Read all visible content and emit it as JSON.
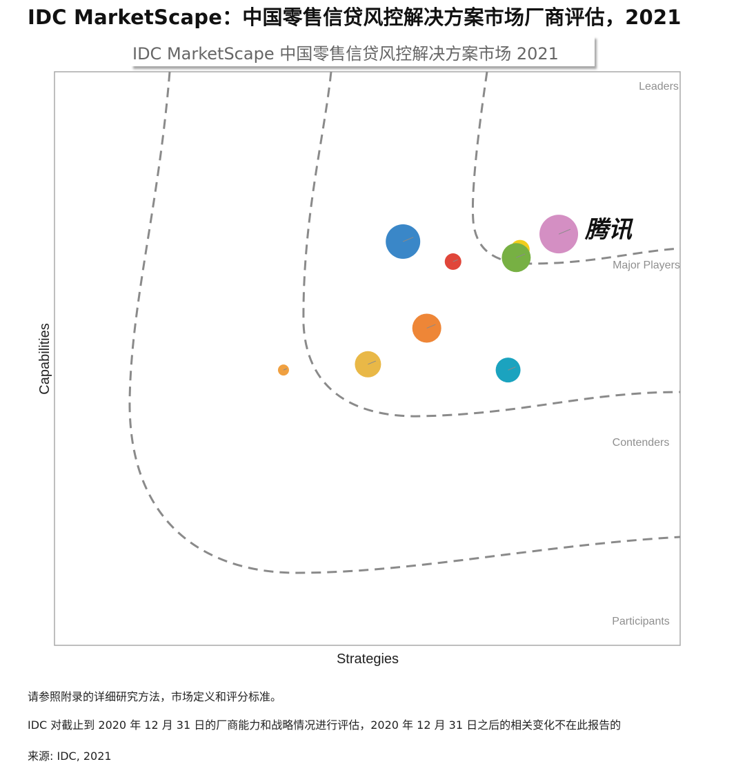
{
  "header": {
    "title": "IDC MarketScape：中国零售信贷风控解决方案市场厂商评估，2021",
    "subtitle": "IDC MarketScape 中国零售信贷风控解决方案市场 2021"
  },
  "chart_data": {
    "type": "scatter",
    "title": "IDC MarketScape 中国零售信贷风控解决方案市场 2021",
    "xlabel": "Strategies",
    "ylabel": "Capabilities",
    "xlim": [
      0,
      100
    ],
    "ylim": [
      0,
      100
    ],
    "grid": false,
    "legend": "none",
    "zones": [
      {
        "label": "Leaders"
      },
      {
        "label": "Major Players"
      },
      {
        "label": "Contenders"
      },
      {
        "label": "Participants"
      }
    ],
    "highlight_label": "腾讯",
    "points": [
      {
        "x": 80.6,
        "y": 71.7,
        "size": 28,
        "color": "#d48fc3",
        "label": "腾讯"
      },
      {
        "x": 74.4,
        "y": 69.0,
        "size": 14,
        "color": "#f2cd1c",
        "label": ""
      },
      {
        "x": 73.8,
        "y": 67.6,
        "size": 21,
        "color": "#77b043",
        "label": ""
      },
      {
        "x": 55.7,
        "y": 70.4,
        "size": 25,
        "color": "#3a87c8",
        "label": ""
      },
      {
        "x": 63.7,
        "y": 66.9,
        "size": 12,
        "color": "#e0463a",
        "label": ""
      },
      {
        "x": 59.5,
        "y": 55.3,
        "size": 21,
        "color": "#ee8637",
        "label": ""
      },
      {
        "x": 50.1,
        "y": 49.0,
        "size": 19,
        "color": "#e9b847",
        "label": ""
      },
      {
        "x": 72.5,
        "y": 48.0,
        "size": 18,
        "color": "#1ba3bf",
        "label": ""
      },
      {
        "x": 36.6,
        "y": 48.0,
        "size": 8,
        "color": "#f0a040",
        "label": ""
      }
    ]
  },
  "notes": {
    "line1": "请参照附录的详细研究方法，市场定义和评分标准。",
    "line2": "IDC 对截止到 2020 年 12 月 31 日的厂商能力和战略情况进行评估，2020 年 12 月 31 日之后的相关变化不在此报告的",
    "source": "来源: IDC, 2021"
  }
}
